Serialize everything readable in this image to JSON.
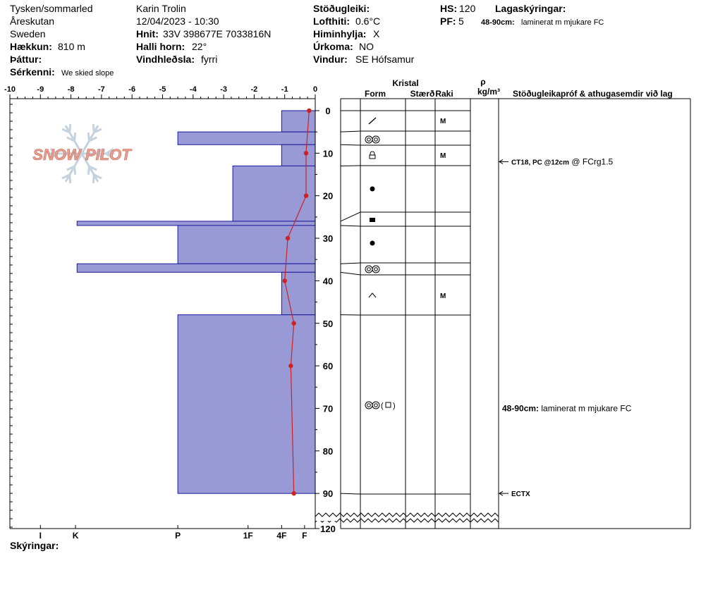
{
  "header": {
    "location_area": "Tysken/sommarled",
    "location_name": "Åreskutan",
    "country": "Sweden",
    "elevation_label": "Hækkun:",
    "elevation_value": "810 m",
    "aspect_label": "Þáttur:",
    "aspect_value": "",
    "notes_label": "Sérkenni:",
    "notes_value": "We skied slope",
    "observer": "Karin  Trolin",
    "datetime": "12/04/2023 - 10:30",
    "coords_label": "Hnit:",
    "coords_value": "33V 398677E 7033816N",
    "slope_label": "Halli horn:",
    "slope_value": "22°",
    "wind_loading_label": "Vindhleðsla:",
    "wind_loading_value": "fyrri",
    "stability_label": "Stöðugleiki:",
    "stability_value": "",
    "air_temp_label": "Lofthiti:",
    "air_temp_value": "0.6°C",
    "sky_label": "Himinhylja:",
    "sky_value": "X",
    "precip_label": "Úrkoma:",
    "precip_value": "NO",
    "wind_label": "Vindur:",
    "wind_value": "SE Hófsamur",
    "hs_label": "HS:",
    "hs_value": "120",
    "pf_label": "PF:",
    "pf_value": "5",
    "layers_label": "Lagaskýringar:",
    "layer_note_range": "48-90cm:",
    "layer_note_text": "laminerat m mjukare FC",
    "footer_label": "Skýringar:"
  },
  "table_headers": {
    "crystal": "Kristal",
    "form": "Form",
    "size": "Stærð",
    "moisture": "Raki",
    "density_symbol": "ρ",
    "density_unit": "kg/m³",
    "tests": "Stöðugleikapróf & athugasemdir við lag"
  },
  "test_results": [
    {
      "depth": 12,
      "bold": "CT18, PC @12cm",
      "text": " @ FCrg1.5"
    },
    {
      "depth": 70,
      "bold": "48-90cm:",
      "text": " laminerat m mjukare FC"
    },
    {
      "depth": 90,
      "bold": "ECTX",
      "text": ""
    }
  ],
  "colors": {
    "hardness_fill": "#9999d6",
    "hardness_stroke": "#1a1a9e",
    "temp_line": "#cc2222",
    "logo": "#e8a090",
    "flake": "#c6d2de"
  },
  "logo_text": "SNOW PILOT",
  "chart_data": {
    "type": "snow_profile",
    "temperature_axis": {
      "ticks": [
        -10,
        -9,
        -8,
        -7,
        -6,
        -5,
        -4,
        -3,
        -2,
        -1,
        0
      ],
      "range": [
        -10,
        0
      ]
    },
    "depth_axis": {
      "ticks": [
        0,
        10,
        20,
        30,
        40,
        50,
        60,
        70,
        80,
        90,
        120
      ],
      "range": [
        0,
        120
      ],
      "break_after": 90
    },
    "hardness_axis": {
      "labels": [
        "I",
        "K",
        "P",
        "1F",
        "4F",
        "F"
      ],
      "values": [
        -9,
        -7.85,
        -4.5,
        -2.2,
        -1.1,
        -0.35
      ]
    },
    "layers": [
      {
        "top": 0,
        "bottom": 5,
        "hardness_temp": -1.1,
        "form": "slash",
        "moisture": "M"
      },
      {
        "top": 5,
        "bottom": 8,
        "hardness_temp": -4.5,
        "form": "round-pair",
        "moisture": ""
      },
      {
        "top": 8,
        "bottom": 13,
        "hardness_temp": -1.1,
        "form": "lock",
        "moisture": "M"
      },
      {
        "top": 13,
        "bottom": 26,
        "hardness_temp": -2.7,
        "form": "dot",
        "moisture": ""
      },
      {
        "top": 26,
        "bottom": 27,
        "hardness_temp": -7.8,
        "form": "square",
        "moisture": ""
      },
      {
        "top": 27,
        "bottom": 36,
        "hardness_temp": -4.5,
        "form": "dot",
        "moisture": ""
      },
      {
        "top": 36,
        "bottom": 38,
        "hardness_temp": -7.8,
        "form": "round-pair",
        "moisture": ""
      },
      {
        "top": 38,
        "bottom": 48,
        "hardness_temp": -1.1,
        "form": "caret",
        "moisture": "M"
      },
      {
        "top": 48,
        "bottom": 90,
        "hardness_temp": -4.5,
        "form": "round-pair-square",
        "moisture": ""
      }
    ],
    "temperature_profile": [
      {
        "depth": 0,
        "temp": -0.2
      },
      {
        "depth": 10,
        "temp": -0.3
      },
      {
        "depth": 20,
        "temp": -0.3
      },
      {
        "depth": 30,
        "temp": -0.9
      },
      {
        "depth": 40,
        "temp": -1.0
      },
      {
        "depth": 50,
        "temp": -0.7
      },
      {
        "depth": 60,
        "temp": -0.8
      },
      {
        "depth": 90,
        "temp": -0.7
      }
    ]
  }
}
